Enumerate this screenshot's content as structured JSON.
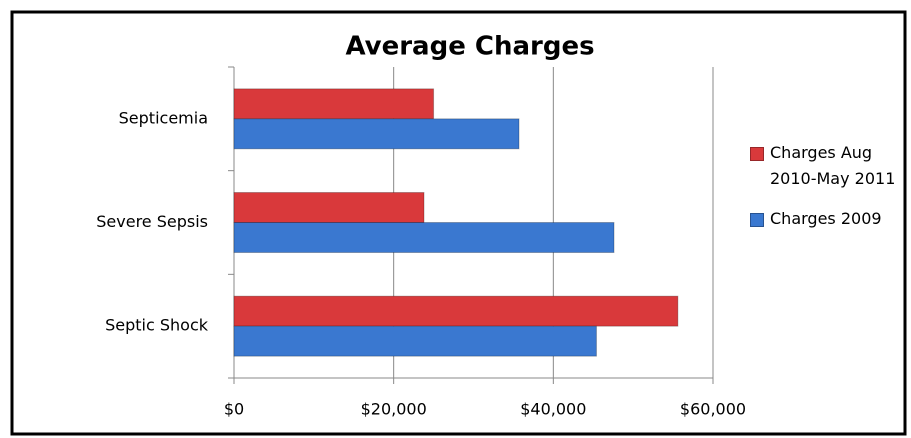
{
  "chart_data": {
    "type": "bar",
    "orientation": "horizontal",
    "title": "Average Charges",
    "categories": [
      "Septicemia",
      "Severe Sepsis",
      "Septic Shock"
    ],
    "series": [
      {
        "name": "Charges Aug 2010-May 2011",
        "color": "#d9393b",
        "values": [
          25000,
          23800,
          55600
        ]
      },
      {
        "name": "Charges 2009",
        "color": "#3a78d0",
        "values": [
          35700,
          47600,
          45400
        ]
      }
    ],
    "xlim": [
      0,
      60000
    ],
    "xticks": [
      {
        "value": 0,
        "label": "$0"
      },
      {
        "value": 20000,
        "label": "$20,000"
      },
      {
        "value": 40000,
        "label": "$40,000"
      },
      {
        "value": 60000,
        "label": "$60,000"
      }
    ],
    "grid": true,
    "legend": "right"
  }
}
